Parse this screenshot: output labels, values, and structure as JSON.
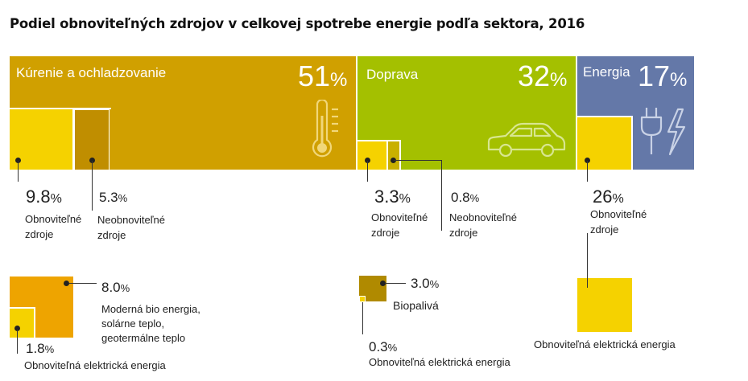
{
  "title": "Podiel obnoviteľných zdrojov v celkovej spotrebe energie podľa sektora, 2016",
  "colors": {
    "heating": "#d0a000",
    "transport": "#a4c000",
    "energy": "#6478a8",
    "renewable_yellow": "#f5d200",
    "heating_inner": "#c08e00",
    "bio_orange": "#eea400",
    "bio_elec": "#f5d200",
    "biofuel": "#b08a00",
    "energy_elec": "#f5d200"
  },
  "sectors": {
    "heating": {
      "label": "Kúrenie a ochladzovanie",
      "share": "51",
      "unit": "%",
      "icon": "thermometer-icon",
      "renewable": {
        "value": "9.8",
        "unit": "%",
        "label1": "Obnoviteľné",
        "label2": "zdroje"
      },
      "nonrenewable": {
        "value": "5.3",
        "unit": "%",
        "label1": "Neobnoviteľné",
        "label2": "zdroje"
      },
      "breakdown": {
        "bio": {
          "value": "8.0",
          "unit": "%",
          "label1": "Moderná bio energia,",
          "label2": "solárne teplo,",
          "label3": "geotermálne teplo"
        },
        "elec": {
          "value": "1.8",
          "unit": "%",
          "label": "Obnoviteľná elektrická energia"
        }
      }
    },
    "transport": {
      "label": "Doprava",
      "share": "32",
      "unit": "%",
      "icon": "car-icon",
      "renewable": {
        "value": "3.3",
        "unit": "%",
        "label1": "Obnoviteľné",
        "label2": "zdroje"
      },
      "nonrenewable": {
        "value": "0.8",
        "unit": "%",
        "label1": "Neobnoviteľné",
        "label2": "zdroje"
      },
      "breakdown": {
        "biofuel": {
          "value": "3.0",
          "unit": "%",
          "label": "Biopalivá"
        },
        "elec": {
          "value": "0.3",
          "unit": "%",
          "label": "Obnoviteľná elektrická energia"
        }
      }
    },
    "energy": {
      "label": "Energia",
      "share": "17",
      "unit": "%",
      "icon": "plug-lightning-icon",
      "renewable": {
        "value": "26",
        "unit": "%",
        "label1": "Obnoviteľné",
        "label2": "zdroje"
      },
      "breakdown": {
        "elec": {
          "label": "Obnoviteľná elektrická energia"
        }
      }
    }
  },
  "chart_data": {
    "type": "table",
    "title": "Podiel obnoviteľných zdrojov v celkovej spotrebe energie podľa sektora, 2016",
    "unit": "%",
    "sectors": [
      {
        "name": "Kúrenie a ochladzovanie",
        "share": 51,
        "renewable": 9.8,
        "nonrenewable": 5.3,
        "renewable_breakdown": [
          {
            "name": "Moderná bio energia, solárne teplo, geotermálne teplo",
            "value": 8.0
          },
          {
            "name": "Obnoviteľná elektrická energia",
            "value": 1.8
          }
        ]
      },
      {
        "name": "Doprava",
        "share": 32,
        "renewable": 3.3,
        "nonrenewable": 0.8,
        "renewable_breakdown": [
          {
            "name": "Biopalivá",
            "value": 3.0
          },
          {
            "name": "Obnoviteľná elektrická energia",
            "value": 0.3
          }
        ]
      },
      {
        "name": "Energia",
        "share": 17,
        "renewable": 26,
        "renewable_breakdown": [
          {
            "name": "Obnoviteľná elektrická energia",
            "value": 26
          }
        ]
      }
    ]
  }
}
